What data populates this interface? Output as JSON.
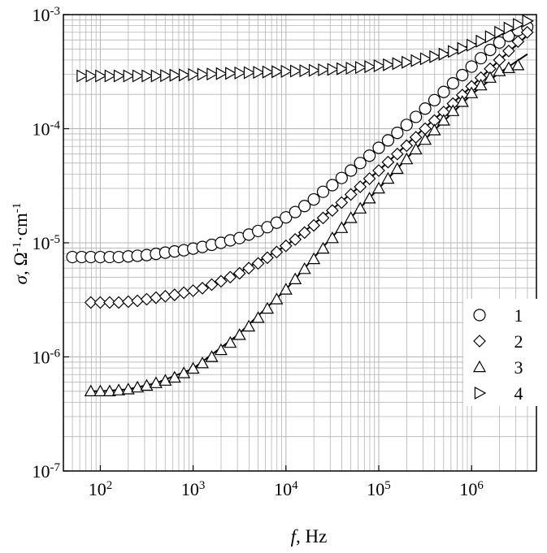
{
  "chart_data": {
    "type": "scatter",
    "xlabel": {
      "var": "f",
      "rest": ", Hz"
    },
    "ylabel": {
      "var": "σ",
      "rest": ", Ω",
      "sup1": "-1",
      "mid": "·cm",
      "sup2": "-1"
    },
    "xscale": "log",
    "yscale": "log",
    "xlim": [
      40,
      5000000
    ],
    "ylim": [
      1e-07,
      0.001
    ],
    "x_ticks": [
      {
        "value": 100,
        "base": "10",
        "exp": "2"
      },
      {
        "value": 1000,
        "base": "10",
        "exp": "3"
      },
      {
        "value": 10000,
        "base": "10",
        "exp": "4"
      },
      {
        "value": 100000,
        "base": "10",
        "exp": "5"
      },
      {
        "value": 1000000,
        "base": "10",
        "exp": "6"
      }
    ],
    "y_ticks": [
      {
        "value": 1e-07,
        "base": "10",
        "exp": "-7"
      },
      {
        "value": 1e-06,
        "base": "10",
        "exp": "-6"
      },
      {
        "value": 1e-05,
        "base": "10",
        "exp": "-5"
      },
      {
        "value": 0.0001,
        "base": "10",
        "exp": "-4"
      },
      {
        "value": 0.001,
        "base": "10",
        "exp": "-3"
      }
    ],
    "grid": true,
    "legend_position": "right",
    "series": [
      {
        "name": "1",
        "marker": "circle",
        "x": [
          50,
          63,
          79,
          100,
          126,
          158,
          200,
          251,
          316,
          398,
          501,
          631,
          794,
          1000,
          1259,
          1585,
          1995,
          2512,
          3162,
          3981,
          5012,
          6310,
          7943,
          10000,
          12589,
          15849,
          19953,
          25119,
          31623,
          39811,
          50119,
          63096,
          79433,
          100000,
          125893,
          158489,
          199526,
          251189,
          316228,
          398107,
          501187,
          630957,
          794328,
          1000000,
          1258925,
          1584893,
          1995262,
          2511886,
          3162278,
          3981072
        ],
        "y": [
          7.5e-06,
          7.5e-06,
          7.5e-06,
          7.5e-06,
          7.5e-06,
          7.5e-06,
          7.6e-06,
          7.7e-06,
          7.8e-06,
          8e-06,
          8.2e-06,
          8.4e-06,
          8.6e-06,
          8.9e-06,
          9.2e-06,
          9.6e-06,
          1e-05,
          1.05e-05,
          1.1e-05,
          1.18e-05,
          1.27e-05,
          1.37e-05,
          1.5e-05,
          1.67e-05,
          1.86e-05,
          2.1e-05,
          2.4e-05,
          2.8e-05,
          3.2e-05,
          3.7e-05,
          4.3e-05,
          5e-05,
          5.8e-05,
          6.8e-05,
          7.9e-05,
          9.2e-05,
          0.000108,
          0.000127,
          0.00015,
          0.000178,
          0.00021,
          0.00025,
          0.000295,
          0.00035,
          0.000415,
          0.00049,
          0.00057,
          0.00065,
          0.00073,
          0.00078
        ]
      },
      {
        "name": "2",
        "marker": "diamond",
        "x": [
          79,
          100,
          126,
          158,
          200,
          251,
          316,
          398,
          501,
          631,
          794,
          1000,
          1259,
          1585,
          1995,
          2512,
          3162,
          3981,
          5012,
          6310,
          7943,
          10000,
          12589,
          15849,
          19953,
          25119,
          31623,
          39811,
          50119,
          63096,
          79433,
          100000,
          125893,
          158489,
          199526,
          251189,
          316228,
          398107,
          501187,
          630957,
          794328,
          1000000,
          1258925,
          1584893,
          1995262,
          2511886,
          3162278,
          3981072
        ],
        "y": [
          3e-06,
          3e-06,
          3e-06,
          3e-06,
          3.05e-06,
          3.1e-06,
          3.2e-06,
          3.3e-06,
          3.4e-06,
          3.5e-06,
          3.65e-06,
          3.8e-06,
          4e-06,
          4.3e-06,
          4.6e-06,
          5e-06,
          5.4e-06,
          6e-06,
          6.6e-06,
          7.4e-06,
          8.3e-06,
          9.4e-06,
          1.07e-05,
          1.23e-05,
          1.42e-05,
          1.65e-05,
          1.92e-05,
          2.25e-05,
          2.65e-05,
          3.1e-05,
          3.65e-05,
          4.3e-05,
          5.1e-05,
          6e-05,
          7.1e-05,
          8.4e-05,
          0.0001,
          0.000118,
          0.00014,
          0.000166,
          0.000197,
          0.000235,
          0.00028,
          0.000335,
          0.0004,
          0.00048,
          0.00058,
          0.0007
        ]
      },
      {
        "name": "3",
        "marker": "triangle-up",
        "x": [
          79,
          100,
          126,
          158,
          200,
          251,
          316,
          398,
          501,
          631,
          794,
          1000,
          1259,
          1585,
          1995,
          2512,
          3162,
          3981,
          5012,
          6310,
          7943,
          10000,
          12589,
          15849,
          19953,
          25119,
          31623,
          39811,
          50119,
          63096,
          79433,
          100000,
          125893,
          158489,
          199526,
          251189,
          316228,
          398107,
          501187,
          630957,
          794328,
          1000000,
          1258925,
          1584893,
          1995262,
          2511886,
          3162278
        ],
        "y": [
          5e-07,
          5e-07,
          5e-07,
          5.1e-07,
          5.2e-07,
          5.4e-07,
          5.6e-07,
          5.9e-07,
          6.2e-07,
          6.6e-07,
          7.2e-07,
          7.9e-07,
          8.8e-07,
          1e-06,
          1.15e-06,
          1.33e-06,
          1.56e-06,
          1.85e-06,
          2.2e-06,
          2.65e-06,
          3.2e-06,
          3.9e-06,
          4.8e-06,
          5.9e-06,
          7.2e-06,
          8.9e-06,
          1.1e-05,
          1.35e-05,
          1.65e-05,
          2e-05,
          2.45e-05,
          3e-05,
          3.65e-05,
          4.45e-05,
          5.4e-05,
          6.6e-05,
          8e-05,
          9.7e-05,
          0.000118,
          0.000143,
          0.000172,
          0.000205,
          0.00024,
          0.00028,
          0.00032,
          0.00034,
          0.00036
        ]
      },
      {
        "name": "4",
        "marker": "triangle-right",
        "x": [
          63,
          79,
          100,
          126,
          158,
          200,
          251,
          316,
          398,
          501,
          631,
          794,
          1000,
          1259,
          1585,
          1995,
          2512,
          3162,
          3981,
          5012,
          6310,
          7943,
          10000,
          12589,
          15849,
          19953,
          25119,
          31623,
          39811,
          50119,
          63096,
          79433,
          100000,
          125893,
          158489,
          199526,
          251189,
          316228,
          398107,
          501187,
          630957,
          794328,
          1000000,
          1258925,
          1584893,
          1995262,
          2511886,
          3162278,
          3981072
        ],
        "y": [
          0.00029,
          0.00029,
          0.00029,
          0.00029,
          0.00029,
          0.00029,
          0.00029,
          0.00029,
          0.00029,
          0.000292,
          0.000294,
          0.000296,
          0.000298,
          0.0003,
          0.000302,
          0.000304,
          0.000306,
          0.000308,
          0.00031,
          0.000312,
          0.000314,
          0.000316,
          0.000318,
          0.00032,
          0.000322,
          0.000325,
          0.000328,
          0.000331,
          0.000335,
          0.000339,
          0.000344,
          0.00035,
          0.000356,
          0.000363,
          0.000372,
          0.000382,
          0.000395,
          0.00041,
          0.000428,
          0.00045,
          0.000475,
          0.000505,
          0.00054,
          0.000585,
          0.00064,
          0.0007,
          0.00076,
          0.00082,
          0.00088
        ]
      }
    ],
    "fit_lines": [
      {
        "series": "1",
        "x": [
          50,
          100,
          200,
          400,
          1000,
          3000,
          10000,
          30000,
          100000,
          300000,
          1000000,
          2000000,
          4000000
        ],
        "y": [
          7.5e-06,
          7.5e-06,
          7.6e-06,
          7.9e-06,
          8.9e-06,
          1.09e-05,
          1.67e-05,
          3.15e-05,
          6.8e-05,
          0.000142,
          0.00035,
          0.00056,
          0.00075
        ]
      },
      {
        "series": "2",
        "x": [
          80,
          100,
          200,
          400,
          1000,
          3000,
          10000,
          30000,
          100000,
          300000,
          1000000,
          2000000,
          4000000
        ],
        "y": [
          3e-06,
          3e-06,
          3.05e-06,
          3.3e-06,
          3.8e-06,
          5.4e-06,
          9.4e-06,
          1.9e-05,
          4.3e-05,
          9.9e-05,
          0.000235,
          0.0004,
          0.00066
        ]
      },
      {
        "series": "3",
        "x": [
          80,
          100,
          200,
          400,
          1000,
          3000,
          10000,
          30000,
          100000,
          300000,
          1000000,
          2000000,
          4000000
        ],
        "y": [
          5e-07,
          5e-07,
          5.2e-07,
          5.9e-07,
          7.9e-07,
          1.55e-06,
          3.9e-06,
          1.08e-05,
          3e-05,
          7.8e-05,
          0.0002,
          0.00031,
          0.00045
        ]
      },
      {
        "series": "4",
        "x": [
          63,
          100,
          1000,
          10000,
          100000,
          300000,
          1000000,
          2000000,
          4000000
        ],
        "y": [
          0.00029,
          0.00029,
          0.000298,
          0.000318,
          0.00035,
          0.000395,
          0.00054,
          0.00066,
          0.00086
        ]
      }
    ],
    "colors": {
      "axis": "#000000",
      "grid": "#b4b4b4",
      "marker": "#000000",
      "fit": "#000000"
    }
  }
}
